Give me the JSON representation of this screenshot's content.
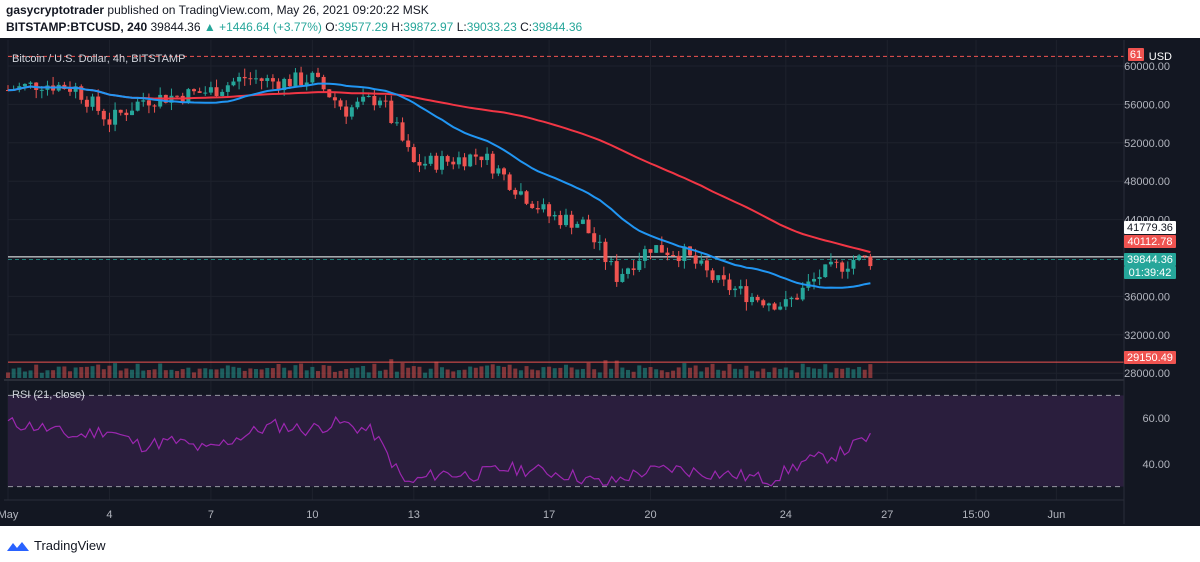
{
  "header": {
    "author": "gasycryptotrader",
    "published_text": "published on TradingView.com, May 26, 2021 09:20:22 MSK",
    "symbol": "BITSTAMP:BTCUSD, 240",
    "last": "39844.36",
    "change": "+1446.64 (+3.77%)",
    "ohlc": {
      "o_label": "O:",
      "o": "39577.29",
      "h_label": "H:",
      "h": "39872.97",
      "l_label": "L:",
      "l": "39033.23",
      "c_label": "C:",
      "c": "39844.36"
    }
  },
  "legend": {
    "title": "Bitcoin / U.S. Dollar, 4h, BITSTAMP",
    "currency": "USD"
  },
  "rsi_legend": "RSI (21, close)",
  "footer": {
    "brand": "TradingView"
  },
  "colors": {
    "up": "#26a69a",
    "down": "#ef5350",
    "ma_fast": "#2196f3",
    "ma_slow": "#f23645",
    "rsi": "#9c27b0",
    "rsi_band": "#2a1e3d",
    "bg": "#131722"
  },
  "chart_data": [
    {
      "type": "candlestick",
      "title": "Bitcoin / U.S. Dollar, 4h, BITSTAMP",
      "ylabel": "USD",
      "ylim": [
        27500,
        62500
      ],
      "yticks": [
        "60000.00",
        "56000.00",
        "52000.00",
        "48000.00",
        "44000.00",
        "36000.00",
        "32000.00",
        "28000.00"
      ],
      "xticks": [
        "May",
        "4",
        "7",
        "10",
        "13",
        "17",
        "20",
        "24",
        "27",
        "15:00",
        "Jun"
      ],
      "x_dates": [
        "2021-05-01",
        "2021-05-04",
        "2021-05-07",
        "2021-05-10",
        "2021-05-13",
        "2021-05-17",
        "2021-05-20",
        "2021-05-24",
        "2021-05-27",
        "2021-05-29 15:00",
        "2021-06-01"
      ],
      "close_path": [
        [
          "2021-05-01",
          57500
        ],
        [
          "2021-05-02",
          58200
        ],
        [
          "2021-05-03",
          57700
        ],
        [
          "2021-05-04",
          54300
        ],
        [
          "2021-05-05",
          56500
        ],
        [
          "2021-05-06",
          56900
        ],
        [
          "2021-05-07",
          57400
        ],
        [
          "2021-05-08",
          58800
        ],
        [
          "2021-05-09",
          58300
        ],
        [
          "2021-05-10",
          58700
        ],
        [
          "2021-05-11",
          55400
        ],
        [
          "2021-05-12",
          56800
        ],
        [
          "2021-05-13",
          49800
        ],
        [
          "2021-05-14",
          50100
        ],
        [
          "2021-05-15",
          50800
        ],
        [
          "2021-05-16",
          47400
        ],
        [
          "2021-05-17",
          44400
        ],
        [
          "2021-05-18",
          43600
        ],
        [
          "2021-05-19",
          38100
        ],
        [
          "2021-05-20",
          41200
        ],
        [
          "2021-05-21",
          40400
        ],
        [
          "2021-05-22",
          37400
        ],
        [
          "2021-05-23",
          36000
        ],
        [
          "2021-05-24",
          35100
        ],
        [
          "2021-05-25",
          38200
        ],
        [
          "2021-05-26",
          39844
        ]
      ],
      "price_labels": [
        {
          "text": "61",
          "kind": "level"
        },
        {
          "text": "41779.36",
          "kind": "marker"
        },
        {
          "text": "40112.78",
          "kind": "level"
        },
        {
          "text": "39844.36",
          "kind": "last"
        },
        {
          "text": "01:39:42",
          "kind": "countdown"
        },
        {
          "text": "29150.49",
          "kind": "level"
        }
      ],
      "horizontal_levels": [
        61000,
        40112.78,
        29150.49,
        39844.36
      ],
      "series": [
        {
          "kind": "moving_average_fast"
        },
        {
          "kind": "moving_average_slow"
        }
      ],
      "volume": true
    },
    {
      "type": "line",
      "title": "RSI (21, close)",
      "ylim": [
        25,
        75
      ],
      "yticks": [
        "60.00",
        "40.00"
      ],
      "bands": [
        30,
        70
      ],
      "values": [
        58,
        56,
        52,
        55,
        48,
        50,
        46,
        52,
        57,
        55,
        58,
        54,
        31,
        36,
        35,
        38,
        37,
        35,
        31,
        36,
        38,
        36,
        35,
        33,
        41,
        44,
        52
      ]
    }
  ]
}
